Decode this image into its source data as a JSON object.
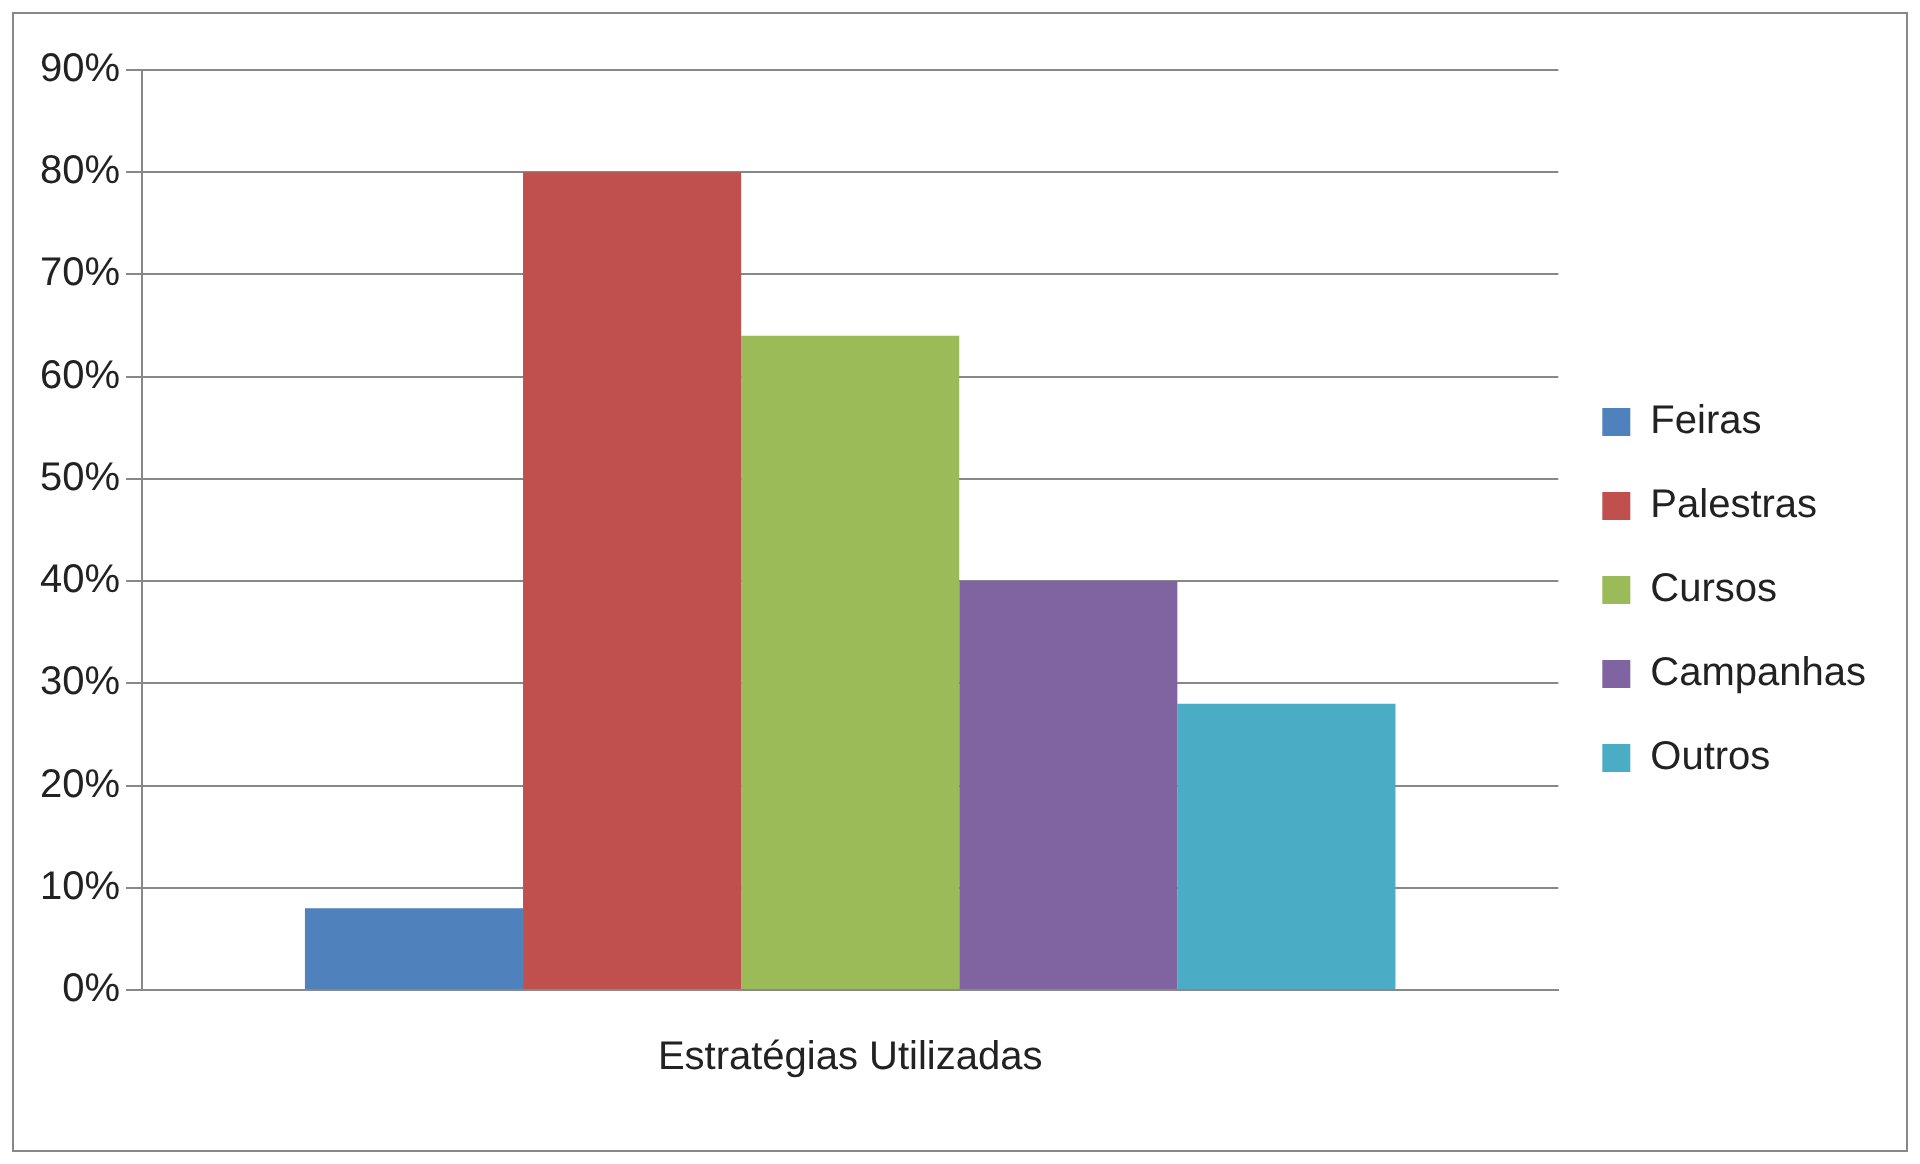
{
  "chart_data": {
    "type": "bar",
    "categories": [
      "Estratégias Utilizadas"
    ],
    "series": [
      {
        "name": "Feiras",
        "color": "#4f81bd",
        "values": [
          8
        ]
      },
      {
        "name": "Palestras",
        "color": "#c0504d",
        "values": [
          80
        ]
      },
      {
        "name": "Cursos",
        "color": "#9bbb59",
        "values": [
          64
        ]
      },
      {
        "name": "Campanhas",
        "color": "#8064a2",
        "values": [
          40
        ]
      },
      {
        "name": "Outros",
        "color": "#4bacc6",
        "values": [
          28
        ]
      }
    ],
    "ylim": [
      0,
      90
    ],
    "yticks": [
      {
        "value": 0,
        "label": "0%"
      },
      {
        "value": 10,
        "label": "10%"
      },
      {
        "value": 20,
        "label": "20%"
      },
      {
        "value": 30,
        "label": "30%"
      },
      {
        "value": 40,
        "label": "40%"
      },
      {
        "value": 50,
        "label": "50%"
      },
      {
        "value": 60,
        "label": "60%"
      },
      {
        "value": 70,
        "label": "70%"
      },
      {
        "value": 80,
        "label": "80%"
      },
      {
        "value": 90,
        "label": "90%"
      }
    ],
    "grid": "y",
    "legend": "right"
  }
}
